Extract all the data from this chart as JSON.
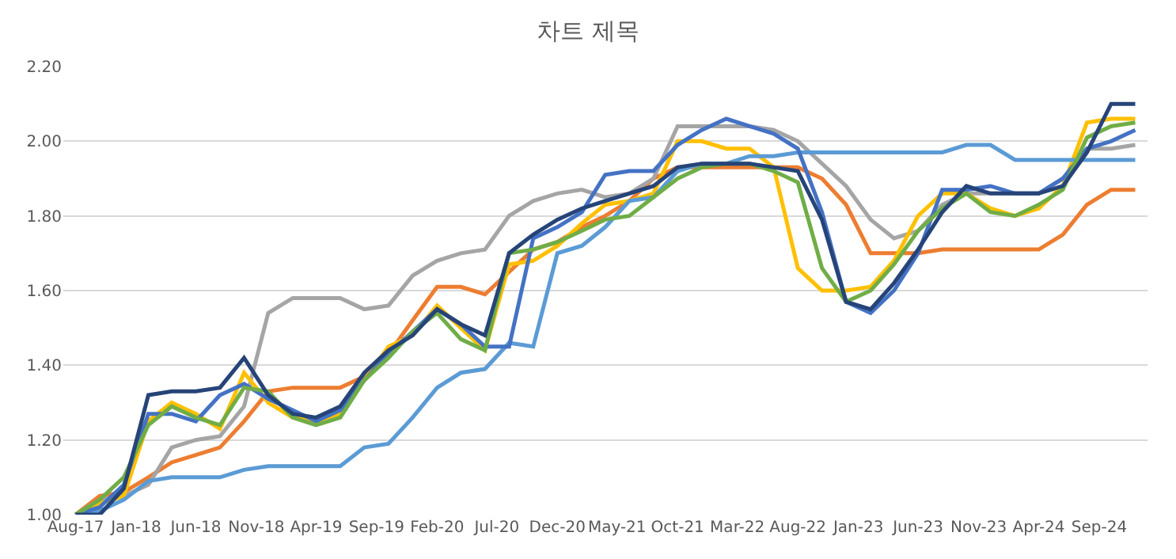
{
  "chart_data": {
    "type": "line",
    "title": "차트 제목",
    "x": [
      "2017-08",
      "2017-10",
      "2017-12",
      "2018-02",
      "2018-04",
      "2018-06",
      "2018-08",
      "2018-10",
      "2018-12",
      "2019-02",
      "2019-04",
      "2019-06",
      "2019-08",
      "2019-10",
      "2019-12",
      "2020-02",
      "2020-04",
      "2020-06",
      "2020-08",
      "2020-10",
      "2020-12",
      "2021-02",
      "2021-04",
      "2021-06",
      "2021-08",
      "2021-10",
      "2021-12",
      "2022-02",
      "2022-04",
      "2022-06",
      "2022-08",
      "2022-10",
      "2022-12",
      "2023-02",
      "2023-04",
      "2023-06",
      "2023-08",
      "2023-10",
      "2023-12",
      "2024-02",
      "2024-04",
      "2024-06",
      "2024-08",
      "2024-10",
      "2024-12"
    ],
    "series": [
      {
        "color": "#ed7d31",
        "values": [
          1.0,
          1.05,
          1.06,
          1.1,
          1.14,
          1.16,
          1.18,
          1.25,
          1.33,
          1.34,
          1.34,
          1.34,
          1.37,
          1.43,
          1.52,
          1.61,
          1.61,
          1.59,
          1.65,
          1.71,
          1.73,
          1.77,
          1.8,
          1.84,
          1.9,
          1.93,
          1.93,
          1.93,
          1.93,
          1.93,
          1.93,
          1.9,
          1.83,
          1.7,
          1.7,
          1.7,
          1.71,
          1.71,
          1.71,
          1.71,
          1.71,
          1.75,
          1.83,
          1.87,
          1.87
        ]
      },
      {
        "color": "#a5a5a5",
        "values": [
          1.0,
          1.04,
          1.05,
          1.08,
          1.18,
          1.2,
          1.21,
          1.29,
          1.54,
          1.58,
          1.58,
          1.58,
          1.55,
          1.56,
          1.64,
          1.68,
          1.7,
          1.71,
          1.8,
          1.84,
          1.86,
          1.87,
          1.85,
          1.86,
          1.9,
          2.04,
          2.04,
          2.04,
          2.04,
          2.03,
          2.0,
          1.94,
          1.88,
          1.79,
          1.74,
          1.76,
          1.83,
          1.86,
          1.86,
          1.86,
          1.86,
          1.9,
          1.98,
          1.98,
          1.99
        ]
      },
      {
        "color": "#ffc000",
        "values": [
          1.0,
          1.03,
          1.05,
          1.25,
          1.3,
          1.27,
          1.23,
          1.38,
          1.3,
          1.26,
          1.25,
          1.27,
          1.36,
          1.45,
          1.48,
          1.56,
          1.5,
          1.44,
          1.67,
          1.68,
          1.72,
          1.78,
          1.83,
          1.84,
          1.86,
          2.0,
          2.0,
          1.98,
          1.98,
          1.93,
          1.66,
          1.6,
          1.6,
          1.61,
          1.68,
          1.8,
          1.86,
          1.86,
          1.82,
          1.8,
          1.82,
          1.88,
          2.05,
          2.06,
          2.06
        ]
      },
      {
        "color": "#5b9bd5",
        "values": [
          1.0,
          1.01,
          1.04,
          1.09,
          1.1,
          1.1,
          1.1,
          1.12,
          1.13,
          1.13,
          1.13,
          1.13,
          1.18,
          1.19,
          1.26,
          1.34,
          1.38,
          1.39,
          1.46,
          1.45,
          1.7,
          1.72,
          1.77,
          1.84,
          1.85,
          1.92,
          1.94,
          1.94,
          1.96,
          1.96,
          1.97,
          1.97,
          1.97,
          1.97,
          1.97,
          1.97,
          1.97,
          1.99,
          1.99,
          1.95,
          1.95,
          1.95,
          1.95,
          1.95,
          1.95
        ]
      },
      {
        "color": "#4472c4",
        "values": [
          1.0,
          1.02,
          1.08,
          1.27,
          1.27,
          1.25,
          1.32,
          1.35,
          1.31,
          1.28,
          1.25,
          1.28,
          1.36,
          1.43,
          1.49,
          1.55,
          1.51,
          1.45,
          1.45,
          1.74,
          1.77,
          1.81,
          1.91,
          1.92,
          1.92,
          1.99,
          2.03,
          2.06,
          2.04,
          2.02,
          1.98,
          1.81,
          1.57,
          1.54,
          1.6,
          1.7,
          1.87,
          1.87,
          1.88,
          1.86,
          1.86,
          1.9,
          1.98,
          2.0,
          2.03
        ]
      },
      {
        "color": "#70ad47",
        "values": [
          1.0,
          1.04,
          1.1,
          1.24,
          1.29,
          1.26,
          1.24,
          1.34,
          1.33,
          1.26,
          1.24,
          1.26,
          1.36,
          1.42,
          1.49,
          1.54,
          1.47,
          1.44,
          1.7,
          1.71,
          1.73,
          1.76,
          1.79,
          1.8,
          1.85,
          1.9,
          1.93,
          1.94,
          1.94,
          1.92,
          1.89,
          1.66,
          1.57,
          1.6,
          1.67,
          1.76,
          1.82,
          1.86,
          1.81,
          1.8,
          1.83,
          1.87,
          2.01,
          2.04,
          2.05
        ]
      },
      {
        "color": "#264478",
        "values": [
          1.0,
          1.0,
          1.07,
          1.32,
          1.33,
          1.33,
          1.34,
          1.42,
          1.32,
          1.27,
          1.26,
          1.29,
          1.38,
          1.44,
          1.48,
          1.55,
          1.51,
          1.48,
          1.7,
          1.75,
          1.79,
          1.82,
          1.84,
          1.86,
          1.88,
          1.93,
          1.94,
          1.94,
          1.94,
          1.93,
          1.92,
          1.79,
          1.57,
          1.55,
          1.62,
          1.71,
          1.81,
          1.88,
          1.86,
          1.86,
          1.86,
          1.88,
          1.97,
          2.1,
          2.1
        ]
      }
    ],
    "xlim": [
      "2017-07",
      "2025-01"
    ],
    "xticks": [
      {
        "value": "2017-08",
        "label": "Aug-17"
      },
      {
        "value": "2018-01",
        "label": "Jan-18"
      },
      {
        "value": "2018-06",
        "label": "Jun-18"
      },
      {
        "value": "2018-11",
        "label": "Nov-18"
      },
      {
        "value": "2019-04",
        "label": "Apr-19"
      },
      {
        "value": "2019-09",
        "label": "Sep-19"
      },
      {
        "value": "2020-02",
        "label": "Feb-20"
      },
      {
        "value": "2020-07",
        "label": "Jul-20"
      },
      {
        "value": "2020-12",
        "label": "Dec-20"
      },
      {
        "value": "2021-05",
        "label": "May-21"
      },
      {
        "value": "2021-10",
        "label": "Oct-21"
      },
      {
        "value": "2022-03",
        "label": "Mar-22"
      },
      {
        "value": "2022-08",
        "label": "Aug-22"
      },
      {
        "value": "2023-01",
        "label": "Jan-23"
      },
      {
        "value": "2023-06",
        "label": "Jun-23"
      },
      {
        "value": "2023-11",
        "label": "Nov-23"
      },
      {
        "value": "2024-04",
        "label": "Apr-24"
      },
      {
        "value": "2024-09",
        "label": "Sep-24"
      }
    ],
    "ylim": [
      1.0,
      2.2
    ],
    "yticks": [
      {
        "value": 1.0,
        "label": "1.00"
      },
      {
        "value": 1.2,
        "label": "1.20"
      },
      {
        "value": 1.4,
        "label": "1.40"
      },
      {
        "value": 1.6,
        "label": "1.60"
      },
      {
        "value": 1.8,
        "label": "1.80"
      },
      {
        "value": 2.0,
        "label": "2.00"
      },
      {
        "value": 2.2,
        "label": "2.20"
      }
    ],
    "grid": "y",
    "marker": "none",
    "line_style": "solid"
  }
}
